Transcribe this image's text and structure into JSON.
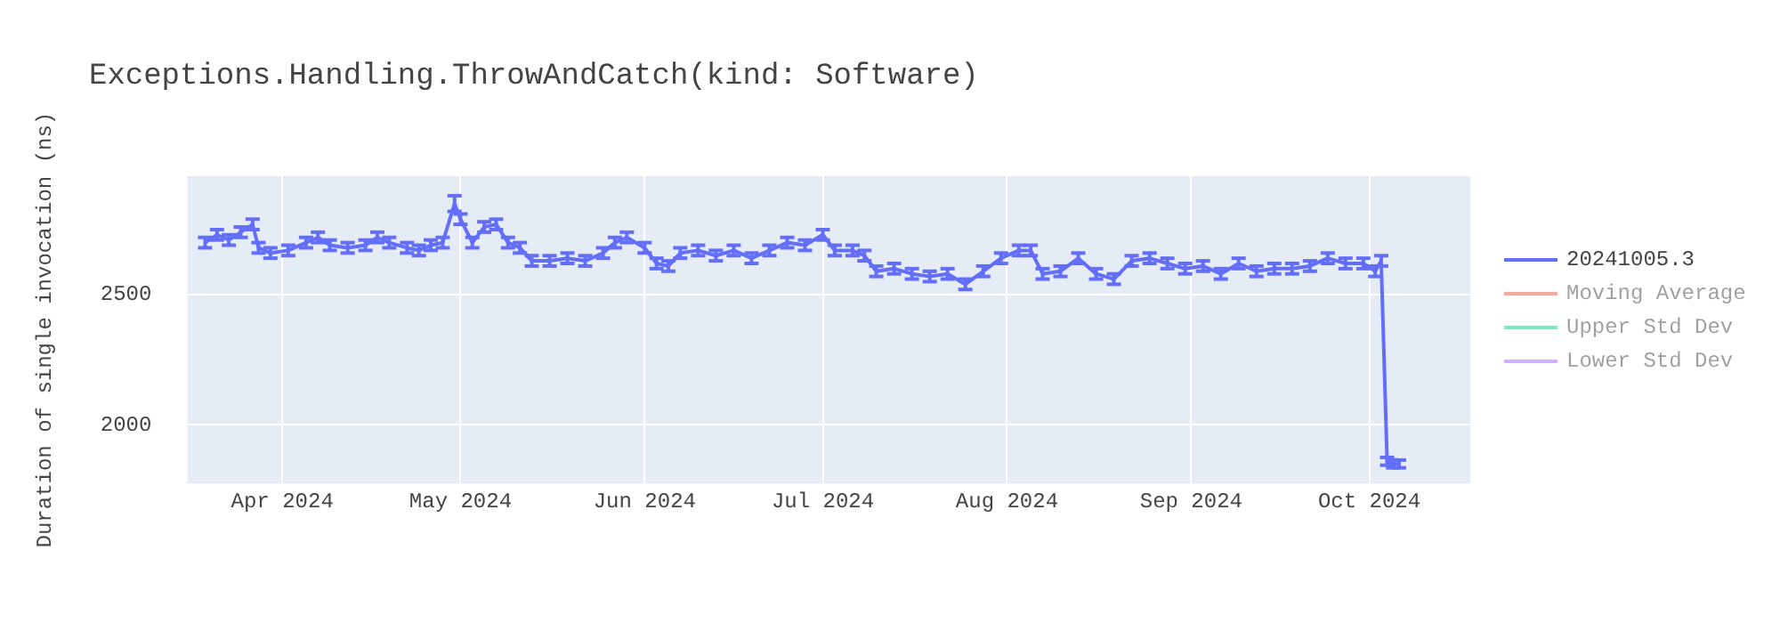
{
  "chart_data": {
    "type": "line",
    "title": "Exceptions.Handling.ThrowAndCatch(kind: Software)",
    "ylabel": "Duration of single invocation (ns)",
    "xlim": [
      "2024-03-16",
      "2024-10-18"
    ],
    "xticks": [
      {
        "value": "2024-04-01",
        "label": "Apr 2024"
      },
      {
        "value": "2024-05-01",
        "label": "May 2024"
      },
      {
        "value": "2024-06-01",
        "label": "Jun 2024"
      },
      {
        "value": "2024-07-01",
        "label": "Jul 2024"
      },
      {
        "value": "2024-08-01",
        "label": "Aug 2024"
      },
      {
        "value": "2024-09-01",
        "label": "Sep 2024"
      },
      {
        "value": "2024-10-01",
        "label": "Oct 2024"
      }
    ],
    "ylim": [
      1775,
      2955
    ],
    "yticks": [
      2000,
      2500
    ],
    "grid": true,
    "legend": "top right",
    "line_style": "solid",
    "series": [
      {
        "name": "20241005.3",
        "color": "#636efa",
        "x": [
          "2024-03-19",
          "2024-03-21",
          "2024-03-23",
          "2024-03-25",
          "2024-03-27",
          "2024-03-28",
          "2024-03-30",
          "2024-04-02",
          "2024-04-05",
          "2024-04-07",
          "2024-04-09",
          "2024-04-12",
          "2024-04-15",
          "2024-04-17",
          "2024-04-19",
          "2024-04-22",
          "2024-04-24",
          "2024-04-26",
          "2024-04-28",
          "2024-04-30",
          "2024-05-01",
          "2024-05-03",
          "2024-05-05",
          "2024-05-07",
          "2024-05-09",
          "2024-05-11",
          "2024-05-13",
          "2024-05-16",
          "2024-05-19",
          "2024-05-22",
          "2024-05-25",
          "2024-05-27",
          "2024-05-29",
          "2024-06-01",
          "2024-06-03",
          "2024-06-05",
          "2024-06-07",
          "2024-06-10",
          "2024-06-13",
          "2024-06-16",
          "2024-06-19",
          "2024-06-22",
          "2024-06-25",
          "2024-06-28",
          "2024-07-01",
          "2024-07-03",
          "2024-07-06",
          "2024-07-08",
          "2024-07-10",
          "2024-07-13",
          "2024-07-16",
          "2024-07-19",
          "2024-07-22",
          "2024-07-25",
          "2024-07-28",
          "2024-07-31",
          "2024-08-03",
          "2024-08-05",
          "2024-08-07",
          "2024-08-10",
          "2024-08-13",
          "2024-08-16",
          "2024-08-19",
          "2024-08-22",
          "2024-08-25",
          "2024-08-28",
          "2024-08-31",
          "2024-09-03",
          "2024-09-06",
          "2024-09-09",
          "2024-09-12",
          "2024-09-15",
          "2024-09-18",
          "2024-09-21",
          "2024-09-24",
          "2024-09-27",
          "2024-09-30",
          "2024-10-02",
          "2024-10-03",
          "2024-10-04",
          "2024-10-05",
          "2024-10-06"
        ],
        "values": [
          2700,
          2730,
          2710,
          2740,
          2770,
          2680,
          2660,
          2670,
          2700,
          2720,
          2690,
          2680,
          2690,
          2720,
          2700,
          2680,
          2670,
          2690,
          2700,
          2850,
          2790,
          2700,
          2760,
          2770,
          2700,
          2680,
          2630,
          2630,
          2640,
          2630,
          2660,
          2700,
          2720,
          2680,
          2620,
          2610,
          2660,
          2670,
          2650,
          2670,
          2640,
          2670,
          2700,
          2690,
          2730,
          2670,
          2670,
          2650,
          2590,
          2600,
          2580,
          2570,
          2580,
          2540,
          2590,
          2640,
          2670,
          2670,
          2580,
          2590,
          2640,
          2580,
          2560,
          2630,
          2640,
          2620,
          2600,
          2610,
          2580,
          2620,
          2590,
          2600,
          2600,
          2610,
          2640,
          2620,
          2620,
          2590,
          2630,
          1860,
          1850,
          1850
        ],
        "errors": [
          20,
          20,
          20,
          20,
          20,
          20,
          20,
          20,
          20,
          20,
          20,
          20,
          20,
          20,
          20,
          20,
          20,
          20,
          20,
          30,
          20,
          20,
          20,
          20,
          20,
          20,
          20,
          20,
          20,
          20,
          20,
          20,
          20,
          20,
          20,
          20,
          20,
          20,
          20,
          20,
          20,
          20,
          20,
          20,
          20,
          20,
          20,
          20,
          20,
          20,
          20,
          20,
          20,
          20,
          20,
          20,
          20,
          20,
          20,
          20,
          20,
          20,
          20,
          20,
          20,
          20,
          20,
          20,
          20,
          20,
          20,
          20,
          20,
          20,
          20,
          20,
          20,
          20,
          20,
          15,
          15,
          15
        ]
      },
      {
        "name": "Moving Average",
        "color": "#ef553b"
      },
      {
        "name": "Upper Std Dev",
        "color": "#00cc96"
      },
      {
        "name": "Lower Std Dev",
        "color": "#ab63fa"
      }
    ]
  }
}
